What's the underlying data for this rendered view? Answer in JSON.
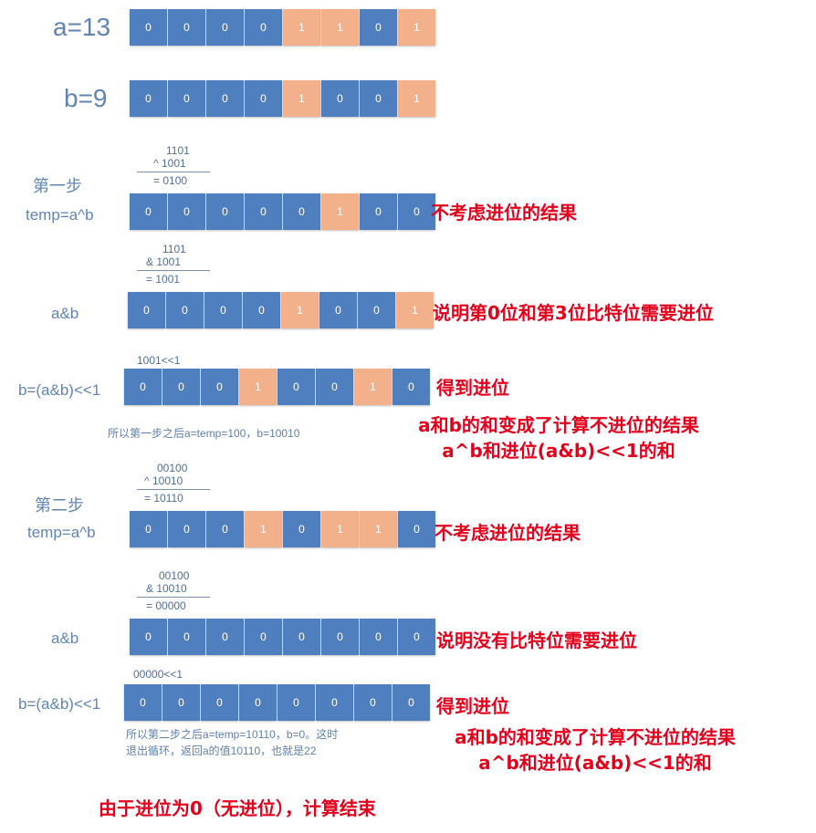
{
  "colors": {
    "cell_zero": "#4f7fbf",
    "cell_one": "#f2b08b",
    "label": "#5f84b4",
    "note": "#e4001b"
  },
  "rows": [
    {
      "label": "a=13",
      "bits": [
        "0",
        "0",
        "0",
        "0",
        "1",
        "1",
        "0",
        "1"
      ]
    },
    {
      "label": "b=9",
      "bits": [
        "0",
        "0",
        "0",
        "0",
        "1",
        "0",
        "0",
        "1"
      ]
    },
    {
      "label": "temp=a^b",
      "step": "第一步",
      "calc": [
        "1101",
        "^ 1001",
        "= 0100"
      ],
      "bits": [
        "0",
        "0",
        "0",
        "0",
        "0",
        "1",
        "0",
        "0"
      ],
      "note": "不考虑进位的结果"
    },
    {
      "label": "a&b",
      "calc": [
        "1101",
        "& 1001",
        "= 1001"
      ],
      "bits": [
        "0",
        "0",
        "0",
        "0",
        "1",
        "0",
        "0",
        "1"
      ],
      "note": "说明第0位和第3位比特位需要进位"
    },
    {
      "label": "b=(a&b)<<1",
      "calc": [
        "1001<<1"
      ],
      "bits": [
        "0",
        "0",
        "0",
        "1",
        "0",
        "0",
        "1",
        "0"
      ],
      "note": "得到进位"
    },
    {
      "label": "temp=a^b",
      "step": "第二步",
      "calc": [
        "00100",
        "^ 10010",
        "= 10110"
      ],
      "bits": [
        "0",
        "0",
        "0",
        "1",
        "0",
        "1",
        "1",
        "0"
      ],
      "note": "不考虑进位的结果"
    },
    {
      "label": "a&b",
      "calc": [
        "00100",
        "& 10010",
        "= 00000"
      ],
      "bits": [
        "0",
        "0",
        "0",
        "0",
        "0",
        "0",
        "0",
        "0"
      ],
      "note": "说明没有比特位需要进位"
    },
    {
      "label": "b=(a&b)<<1",
      "calc": [
        "00000<<1"
      ],
      "bits": [
        "0",
        "0",
        "0",
        "0",
        "0",
        "0",
        "0",
        "0"
      ],
      "note": "得到进位"
    }
  ],
  "step1_summary": "所以第一步之后a=temp=100，b=10010",
  "step1_note": [
    "a和b的和变成了计算不进位的结果",
    "a^b和进位(a&b)<<1的和"
  ],
  "step2_summary": [
    "所以第二步之后a=temp=10110，b=0。这时",
    "退出循环，返回a的值10110，也就是22"
  ],
  "step2_note": [
    "a和b的和变成了计算不进位的结果",
    "a^b和进位(a&b)<<1的和"
  ],
  "conclusion": "由于进位为0（无进位），计算结束"
}
